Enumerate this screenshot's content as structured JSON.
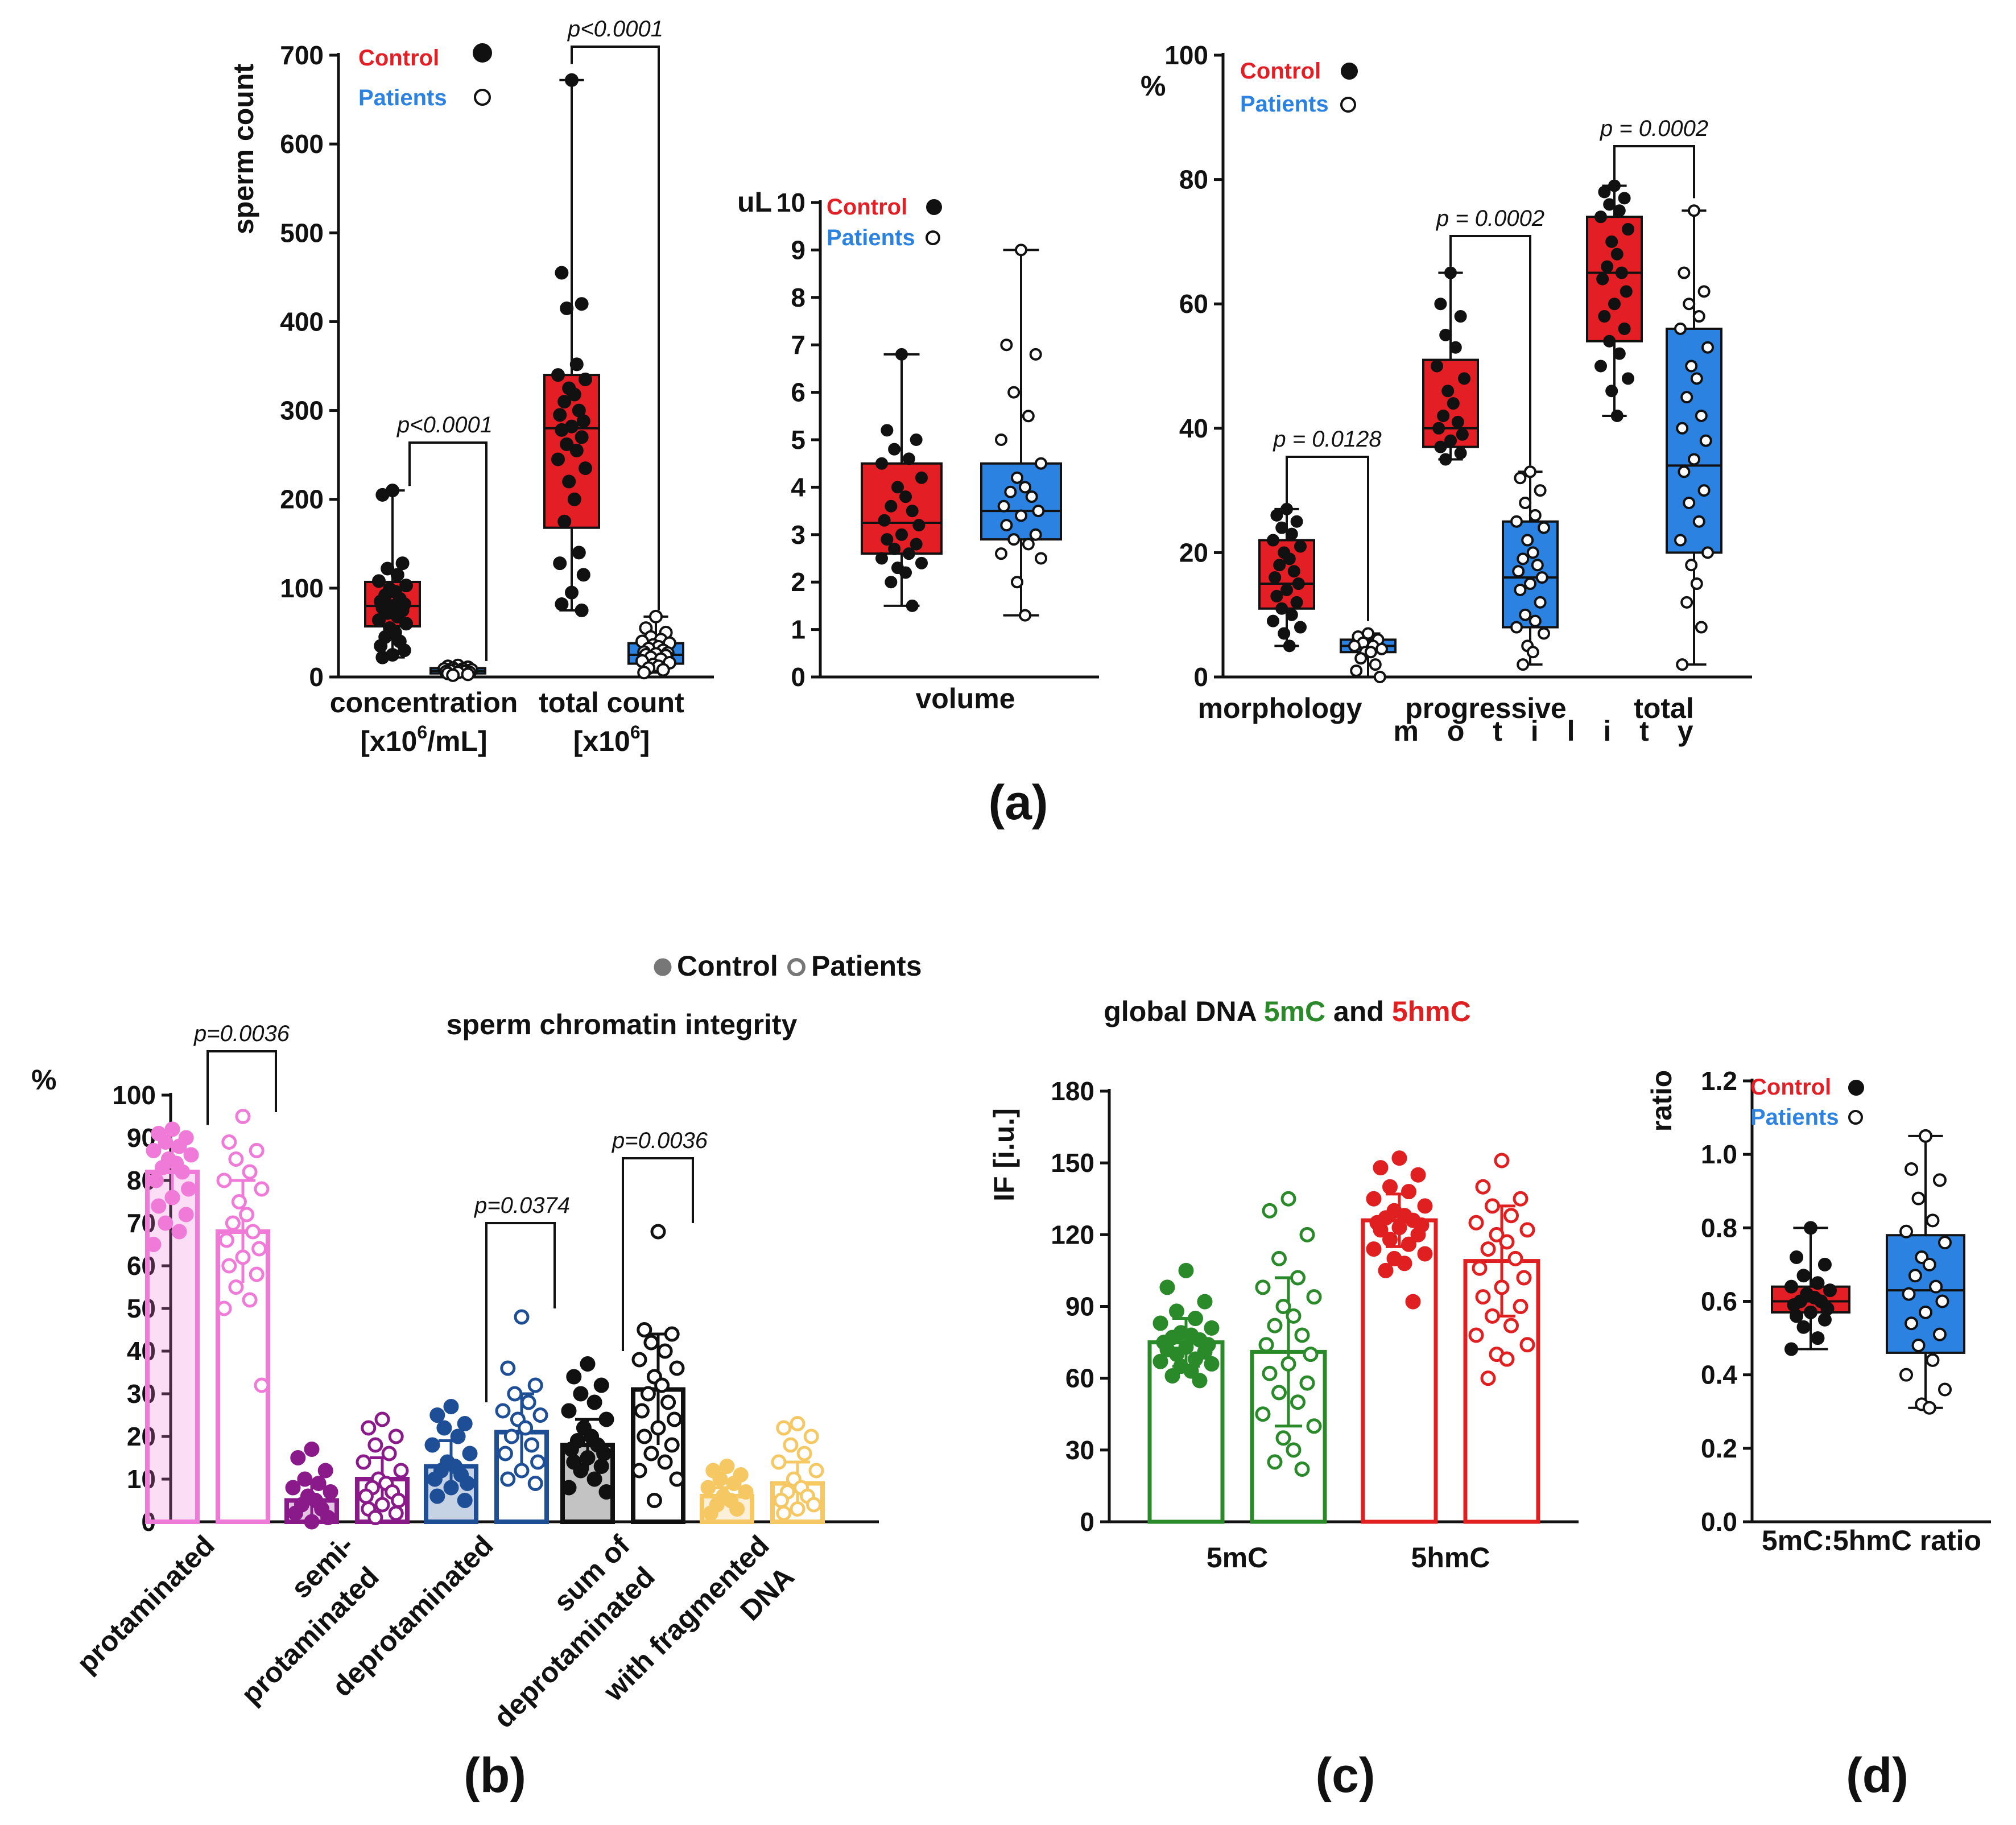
{
  "figure": {
    "background": "#ffffff"
  },
  "colors": {
    "control": "#e31e24",
    "patients": "#2b82e0",
    "protaminated": "#f07ad8",
    "semi": "#8a1a8a",
    "deprot": "#1d4e96",
    "sum": "#111111",
    "frag": "#f5c864",
    "green": "#2a8a2a",
    "red": "#e02020"
  },
  "panels": {
    "a": "(a)",
    "b": "(b)",
    "c": "(c)",
    "d": "(d)"
  },
  "legend": {
    "control": "Control",
    "patients": "Patients"
  },
  "chart_data": [
    {
      "id": "a1",
      "type": "box",
      "ylabel": "sperm count",
      "ylim": [
        0,
        700
      ],
      "yticks": [
        0,
        100,
        200,
        300,
        400,
        500,
        600,
        700
      ],
      "categories": [
        {
          "line1": "concentration",
          "line2": "[x10",
          "sup": "6",
          "line2_end": "/mL]"
        },
        {
          "line1": "total count",
          "line2": "[x10",
          "sup": "6",
          "line2_end": "]"
        }
      ],
      "boxes": [
        {
          "group": "concentration",
          "series": "Control",
          "min": 22,
          "q1": 57,
          "median": 80,
          "q3": 107,
          "max": 210,
          "points": [
            210,
            205,
            128,
            122,
            115,
            108,
            103,
            99,
            96,
            92,
            88,
            85,
            82,
            80,
            78,
            75,
            72,
            68,
            64,
            60,
            55,
            50,
            45,
            40,
            35,
            30,
            25,
            22
          ]
        },
        {
          "group": "concentration",
          "series": "Patients",
          "min": 2,
          "q1": 4,
          "median": 7,
          "q3": 10,
          "max": 13,
          "points": [
            13,
            12,
            11,
            10,
            9,
            9,
            8,
            8,
            7,
            7,
            6,
            6,
            5,
            5,
            4,
            3,
            2
          ]
        },
        {
          "group": "total count",
          "series": "Control",
          "min": 75,
          "q1": 168,
          "median": 280,
          "q3": 340,
          "max": 672,
          "points": [
            672,
            455,
            420,
            415,
            352,
            340,
            335,
            325,
            318,
            310,
            300,
            295,
            288,
            282,
            278,
            270,
            262,
            255,
            245,
            235,
            220,
            200,
            175,
            140,
            128,
            115,
            95,
            82,
            75
          ]
        },
        {
          "group": "total count",
          "series": "Patients",
          "min": 5,
          "q1": 15,
          "median": 25,
          "q3": 38,
          "max": 68,
          "points": [
            68,
            55,
            50,
            45,
            42,
            40,
            38,
            36,
            34,
            32,
            30,
            28,
            27,
            26,
            25,
            24,
            22,
            20,
            18,
            16,
            14,
            12,
            10,
            8,
            5
          ]
        }
      ],
      "pvalues": [
        "p<0.0001",
        "p<0.0001"
      ]
    },
    {
      "id": "a2",
      "type": "box",
      "yunit": "uL",
      "ylim": [
        0,
        10
      ],
      "yticks": [
        0,
        1,
        2,
        3,
        4,
        5,
        6,
        7,
        8,
        9,
        10
      ],
      "xlabel": "volume",
      "boxes": [
        {
          "series": "Control",
          "min": 1.5,
          "q1": 2.6,
          "median": 3.25,
          "q3": 4.5,
          "max": 6.8,
          "points": [
            6.8,
            5.2,
            5.0,
            4.8,
            4.6,
            4.5,
            4.2,
            4.0,
            3.8,
            3.6,
            3.5,
            3.3,
            3.2,
            3.0,
            2.9,
            2.8,
            2.7,
            2.6,
            2.5,
            2.4,
            2.3,
            2.2,
            2.0,
            1.5
          ]
        },
        {
          "series": "Patients",
          "min": 1.3,
          "q1": 2.9,
          "median": 3.5,
          "q3": 4.5,
          "max": 9.0,
          "points": [
            9.0,
            7.0,
            6.8,
            6.0,
            5.5,
            5.0,
            4.5,
            4.2,
            4.0,
            3.9,
            3.8,
            3.6,
            3.5,
            3.4,
            3.2,
            3.0,
            2.9,
            2.8,
            2.6,
            2.5,
            2.0,
            1.3
          ]
        }
      ]
    },
    {
      "id": "a3",
      "type": "box",
      "yunit": "%",
      "ylim": [
        0,
        100
      ],
      "yticks": [
        0,
        20,
        40,
        60,
        80,
        100
      ],
      "categories": [
        "morphology",
        "progressive",
        "total"
      ],
      "subtitle": "m o t i l i t y",
      "boxes": [
        {
          "group": "morphology",
          "series": "Control",
          "min": 5,
          "q1": 11,
          "median": 15,
          "q3": 22,
          "max": 27,
          "points": [
            27,
            26,
            25,
            24,
            23,
            22,
            21,
            20,
            19,
            18,
            17,
            16,
            15,
            14,
            13,
            12,
            11,
            10,
            9,
            8,
            7,
            5
          ]
        },
        {
          "group": "morphology",
          "series": "Patients",
          "min": 0,
          "q1": 4,
          "median": 5,
          "q3": 6,
          "max": 7,
          "points": [
            7,
            6.5,
            6,
            5.5,
            5,
            5,
            4.5,
            4,
            4,
            3,
            2,
            1,
            0
          ]
        },
        {
          "group": "progressive",
          "series": "Control",
          "min": 35,
          "q1": 37,
          "median": 40,
          "q3": 51,
          "max": 65,
          "points": [
            65,
            60,
            58,
            55,
            53,
            50,
            48,
            46,
            44,
            42,
            41,
            40,
            39,
            38,
            37,
            36,
            35
          ]
        },
        {
          "group": "progressive",
          "series": "Patients",
          "min": 2,
          "q1": 8,
          "median": 16,
          "q3": 25,
          "max": 33,
          "points": [
            33,
            32,
            30,
            28,
            26,
            25,
            24,
            22,
            20,
            19,
            18,
            17,
            16,
            15,
            14,
            12,
            10,
            9,
            8,
            7,
            5,
            4,
            2
          ]
        },
        {
          "group": "total",
          "series": "Control",
          "min": 42,
          "q1": 54,
          "median": 65,
          "q3": 74,
          "max": 79,
          "points": [
            79,
            78,
            77,
            76,
            75,
            74,
            72,
            70,
            68,
            66,
            65,
            64,
            62,
            60,
            58,
            56,
            54,
            52,
            50,
            48,
            46,
            42
          ]
        },
        {
          "group": "total",
          "series": "Patients",
          "min": 2,
          "q1": 20,
          "median": 34,
          "q3": 56,
          "max": 75,
          "points": [
            75,
            65,
            62,
            60,
            58,
            56,
            53,
            50,
            48,
            45,
            42,
            40,
            38,
            35,
            33,
            30,
            28,
            25,
            22,
            20,
            18,
            15,
            12,
            8,
            2
          ]
        }
      ],
      "pvalues": [
        "p = 0.0128",
        "p = 0.0002",
        "p = 0.0002"
      ]
    },
    {
      "id": "b",
      "type": "bar",
      "title": "sperm chromatin integrity",
      "yunit": "%",
      "ylim": [
        0,
        100
      ],
      "yticks": [
        0,
        10,
        20,
        30,
        40,
        50,
        60,
        70,
        80,
        90,
        100
      ],
      "legend": [
        "Control",
        "Patients"
      ],
      "categories": [
        {
          "label": [
            "protaminated"
          ],
          "colorKey": "protaminated"
        },
        {
          "label": [
            "semi-",
            "protaminated"
          ],
          "colorKey": "semi"
        },
        {
          "label": [
            "deprotaminated"
          ],
          "colorKey": "deprot"
        },
        {
          "label": [
            "sum of",
            "deprotaminated"
          ],
          "colorKey": "sum"
        },
        {
          "label": [
            "with fragmented",
            "DNA"
          ],
          "colorKey": "frag"
        }
      ],
      "series": [
        {
          "name": "Control",
          "values": [
            82,
            5,
            13,
            18,
            6
          ],
          "errors": [
            6,
            4,
            6,
            6,
            2
          ]
        },
        {
          "name": "Patients",
          "values": [
            68,
            10,
            21,
            31,
            9
          ],
          "errors": [
            12,
            5,
            9,
            13,
            5
          ]
        }
      ],
      "points": [
        {
          "control": [
            92,
            91,
            90,
            89,
            88,
            87,
            86,
            85,
            84,
            83,
            82,
            80,
            78,
            76,
            74,
            72,
            70,
            68,
            65
          ],
          "patients": [
            95,
            89,
            87,
            85,
            82,
            80,
            78,
            75,
            72,
            70,
            68,
            66,
            64,
            62,
            60,
            58,
            55,
            52,
            50,
            32
          ]
        },
        {
          "control": [
            17,
            15,
            12,
            10,
            9,
            8,
            7,
            6,
            5,
            4,
            3,
            2,
            1,
            0
          ],
          "patients": [
            24,
            22,
            20,
            18,
            16,
            14,
            12,
            10,
            9,
            8,
            7,
            6,
            5,
            4,
            3,
            2,
            1
          ]
        },
        {
          "control": [
            27,
            25,
            23,
            22,
            20,
            18,
            16,
            14,
            13,
            12,
            11,
            10,
            9,
            8,
            6,
            5
          ],
          "patients": [
            48,
            36,
            32,
            30,
            28,
            26,
            25,
            24,
            22,
            20,
            18,
            16,
            14,
            12,
            10,
            9
          ]
        },
        {
          "control": [
            37,
            34,
            32,
            30,
            28,
            26,
            24,
            22,
            20,
            19,
            18,
            17,
            16,
            15,
            14,
            13,
            12,
            10,
            8,
            7
          ],
          "patients": [
            68,
            45,
            44,
            42,
            40,
            38,
            36,
            34,
            32,
            30,
            28,
            26,
            24,
            22,
            20,
            18,
            16,
            14,
            12,
            10,
            5
          ]
        },
        {
          "control": [
            13,
            12,
            11,
            10,
            9,
            8,
            7,
            6,
            5,
            4,
            3,
            2
          ],
          "patients": [
            23,
            22,
            20,
            18,
            16,
            14,
            12,
            10,
            8,
            7,
            6,
            5,
            4,
            3,
            2
          ]
        }
      ],
      "pvalues": [
        "p=0.0036",
        "p=0.0374",
        "p=0.0036"
      ]
    },
    {
      "id": "c",
      "type": "bar",
      "title_parts": [
        "global DNA ",
        "5mC",
        " and ",
        "5hmC"
      ],
      "ylabel": "IF [i.u.]",
      "ylim": [
        0,
        180
      ],
      "yticks": [
        0,
        30,
        60,
        90,
        120,
        150,
        180
      ],
      "categories": [
        "5mC",
        "5hmC"
      ],
      "series": [
        {
          "name": "Control",
          "values": [
            75,
            126
          ],
          "errors": [
            10,
            11
          ]
        },
        {
          "name": "Patients",
          "values": [
            71,
            109
          ],
          "errors": [
            31,
            23
          ]
        }
      ],
      "points": [
        {
          "control": [
            105,
            98,
            92,
            88,
            85,
            83,
            81,
            79,
            78,
            77,
            76,
            75,
            74,
            73,
            72,
            71,
            70,
            68,
            67,
            66,
            65,
            63,
            61,
            59
          ],
          "patients": [
            135,
            130,
            120,
            110,
            102,
            98,
            94,
            90,
            86,
            82,
            78,
            74,
            70,
            66,
            62,
            58,
            54,
            50,
            45,
            40,
            35,
            30,
            25,
            22
          ]
        },
        {
          "control": [
            152,
            148,
            145,
            140,
            138,
            135,
            132,
            130,
            128,
            127,
            126,
            125,
            124,
            123,
            122,
            120,
            118,
            116,
            114,
            112,
            110,
            108,
            105,
            92
          ],
          "patients": [
            151,
            140,
            135,
            132,
            128,
            125,
            122,
            120,
            117,
            114,
            110,
            106,
            102,
            98,
            94,
            90,
            86,
            82,
            78,
            74,
            70,
            68,
            60
          ]
        }
      ]
    },
    {
      "id": "d",
      "type": "box",
      "ylabel": "ratio",
      "ylim": [
        0,
        1.2
      ],
      "yticks": [
        "0.0",
        "0.2",
        "0.4",
        "0.6",
        "0.8",
        "1.0",
        "1.2"
      ],
      "xlabel": "5mC:5hmC ratio",
      "boxes": [
        {
          "series": "Control",
          "min": 0.47,
          "q1": 0.57,
          "median": 0.6,
          "q3": 0.64,
          "max": 0.8,
          "points": [
            0.8,
            0.72,
            0.7,
            0.67,
            0.65,
            0.64,
            0.63,
            0.62,
            0.61,
            0.6,
            0.6,
            0.59,
            0.58,
            0.57,
            0.56,
            0.55,
            0.53,
            0.5,
            0.47
          ]
        },
        {
          "series": "Patients",
          "min": 0.31,
          "q1": 0.46,
          "median": 0.63,
          "q3": 0.78,
          "max": 1.05,
          "points": [
            1.05,
            0.96,
            0.93,
            0.88,
            0.82,
            0.79,
            0.76,
            0.72,
            0.7,
            0.67,
            0.64,
            0.62,
            0.6,
            0.57,
            0.54,
            0.51,
            0.48,
            0.44,
            0.4,
            0.36,
            0.32,
            0.31
          ]
        }
      ]
    }
  ]
}
